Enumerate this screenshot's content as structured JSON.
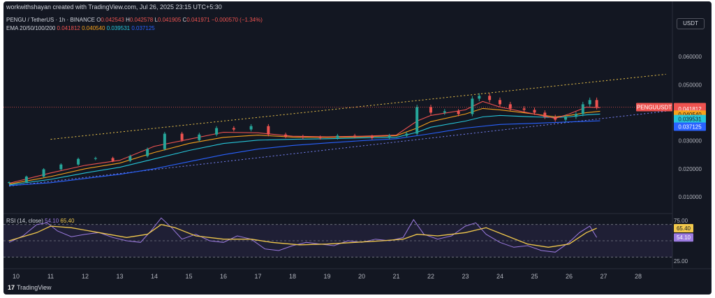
{
  "header": {
    "credit": "workwithshayan created with TradingView.com, Jul 26, 2025 23:15 UTC+5:30",
    "symbol_title": "PENGU / TetherUS · 1h · BINANCE",
    "ohlc": {
      "o_label": "O",
      "o": "0.042543",
      "h_label": "H",
      "h": "0.042578",
      "l_label": "L",
      "l": "0.041905",
      "c_label": "C",
      "c": "0.041971",
      "change": "−0.000570 (−1.34%)"
    },
    "ema_label": "EMA 20/50/100/200",
    "ema_values": [
      "0.041812",
      "0.040540",
      "0.039531",
      "0.037125"
    ],
    "currency": "USDT"
  },
  "rsi": {
    "label": "RSI (14, close)",
    "value": "54.10",
    "ma_value": "65.40"
  },
  "footer": {
    "brand": "TradingView",
    "logo": "17"
  },
  "colors": {
    "background": "#131722",
    "up": "#26a69a",
    "down": "#ef5350",
    "ema20": "#ef5350",
    "ema50": "#f7a21b",
    "ema100": "#26c6da",
    "ema200": "#2962ff",
    "channel": "#f2c94c",
    "rsi": "#9c7be0",
    "rsi_ma": "#f2c94c"
  },
  "chart_data": [
    {
      "type": "candlestick",
      "title": "PENGU / TetherUS · 1h · BINANCE",
      "x_tick_labels": [
        "10",
        "11",
        "12",
        "13",
        "14",
        "15",
        "16",
        "17",
        "18",
        "19",
        "20",
        "21",
        "22",
        "23",
        "24",
        "25",
        "26",
        "27",
        "28"
      ],
      "y_tick_labels": [
        "0.060000",
        "0.050000",
        "0.030000",
        "0.020000",
        "0.010000"
      ],
      "ylim": [
        0.005,
        0.066
      ],
      "last_price_label": "PENGUUSDT",
      "last_price": 0.041971,
      "series": [
        {
          "name": "PENGUUSDT",
          "x": [
            9.8,
            10.3,
            10.8,
            11.3,
            11.8,
            12.3,
            12.8,
            13.3,
            13.8,
            14.3,
            14.8,
            15.3,
            15.8,
            16.3,
            16.8,
            17.3,
            17.8,
            18.3,
            18.8,
            19.3,
            19.8,
            20.3,
            20.8,
            21.3,
            21.6,
            22.0,
            22.4,
            22.8,
            23.2,
            23.4,
            23.7,
            24.0,
            24.3,
            24.7,
            25.0,
            25.3,
            25.6,
            25.9,
            26.2,
            26.4,
            26.6,
            26.8
          ],
          "close": [
            0.0152,
            0.0172,
            0.0198,
            0.0215,
            0.0235,
            0.0238,
            0.0228,
            0.0245,
            0.027,
            0.0325,
            0.0302,
            0.0322,
            0.0345,
            0.034,
            0.0352,
            0.0322,
            0.0315,
            0.0312,
            0.031,
            0.0318,
            0.0315,
            0.031,
            0.0318,
            0.0325,
            0.042,
            0.04,
            0.0405,
            0.0395,
            0.045,
            0.046,
            0.0445,
            0.043,
            0.0415,
            0.041,
            0.04,
            0.0385,
            0.0375,
            0.0385,
            0.0395,
            0.043,
            0.0445,
            0.042
          ]
        },
        {
          "name": "EMA 20",
          "x": [
            9.8,
            11,
            12,
            13,
            14,
            15,
            16,
            17,
            18,
            19,
            20,
            21,
            21.6,
            22,
            23,
            23.5,
            24,
            25,
            25.6,
            26,
            26.5,
            26.9
          ],
          "values": [
            0.0148,
            0.0185,
            0.0212,
            0.023,
            0.028,
            0.0305,
            0.033,
            0.0328,
            0.0316,
            0.0314,
            0.0316,
            0.032,
            0.037,
            0.039,
            0.041,
            0.044,
            0.042,
            0.0395,
            0.038,
            0.0395,
            0.042,
            0.0418
          ]
        },
        {
          "name": "EMA 50",
          "x": [
            9.8,
            11,
            12,
            13,
            14,
            15,
            16,
            17,
            18,
            19,
            20,
            21,
            21.6,
            22,
            23,
            23.5,
            24,
            25,
            25.6,
            26,
            26.5,
            26.9
          ],
          "values": [
            0.0145,
            0.0172,
            0.02,
            0.022,
            0.0258,
            0.029,
            0.0312,
            0.032,
            0.0313,
            0.0312,
            0.0314,
            0.0318,
            0.0345,
            0.0368,
            0.0395,
            0.0415,
            0.041,
            0.0395,
            0.0385,
            0.039,
            0.04,
            0.0405
          ]
        },
        {
          "name": "EMA 100",
          "x": [
            9.8,
            11,
            12,
            13,
            14,
            15,
            16,
            17,
            18,
            19,
            20,
            21,
            21.6,
            22,
            23,
            23.5,
            24,
            25,
            25.6,
            26,
            26.5,
            26.9
          ],
          "values": [
            0.0142,
            0.0162,
            0.0185,
            0.0205,
            0.0235,
            0.0265,
            0.029,
            0.0302,
            0.0305,
            0.0307,
            0.031,
            0.0312,
            0.033,
            0.0348,
            0.037,
            0.0385,
            0.039,
            0.0385,
            0.0383,
            0.0385,
            0.0392,
            0.0395
          ]
        },
        {
          "name": "EMA 200",
          "x": [
            9.8,
            11,
            12,
            13,
            14,
            15,
            16,
            17,
            18,
            19,
            20,
            21,
            22,
            23,
            24,
            25,
            26,
            26.9
          ],
          "values": [
            0.014,
            0.015,
            0.0165,
            0.018,
            0.02,
            0.0225,
            0.025,
            0.027,
            0.0283,
            0.0292,
            0.03,
            0.0307,
            0.0325,
            0.0345,
            0.0358,
            0.0362,
            0.0367,
            0.0371
          ]
        },
        {
          "name": "Channel upper",
          "x": [
            11.0,
            28.8
          ],
          "values": [
            0.0305,
            0.0537
          ]
        },
        {
          "name": "Channel lower",
          "x": [
            9.8,
            28.8
          ],
          "values": [
            0.0138,
            0.0405
          ]
        }
      ]
    },
    {
      "type": "line",
      "title": "RSI (14, close)",
      "y_tick_labels": [
        "75.00",
        "25.00"
      ],
      "ylim": [
        20,
        80
      ],
      "bands": [
        70,
        50,
        30
      ],
      "series": [
        {
          "name": "RSI",
          "x": [
            9.8,
            10.2,
            10.6,
            10.9,
            11.2,
            11.6,
            12.0,
            12.4,
            12.8,
            13.2,
            13.6,
            13.9,
            14.2,
            14.5,
            14.8,
            15.2,
            15.6,
            16.0,
            16.4,
            16.8,
            17.2,
            17.6,
            18.0,
            18.4,
            18.8,
            19.2,
            19.6,
            20.0,
            20.4,
            20.8,
            21.2,
            21.5,
            21.8,
            22.2,
            22.6,
            23.0,
            23.3,
            23.6,
            24.0,
            24.4,
            24.8,
            25.2,
            25.6,
            26.0,
            26.3,
            26.6,
            26.8
          ],
          "values": [
            48,
            56,
            70,
            72,
            62,
            55,
            58,
            60,
            54,
            50,
            48,
            62,
            78,
            66,
            52,
            58,
            50,
            48,
            56,
            52,
            40,
            38,
            44,
            48,
            46,
            44,
            50,
            48,
            52,
            50,
            54,
            76,
            58,
            52,
            56,
            68,
            72,
            58,
            48,
            42,
            44,
            38,
            36,
            48,
            60,
            68,
            54.1
          ]
        },
        {
          "name": "RSI-based MA",
          "x": [
            9.8,
            10.6,
            11.0,
            11.6,
            12.4,
            13.2,
            13.8,
            14.2,
            14.6,
            15.2,
            16.0,
            16.8,
            17.4,
            18.2,
            19.0,
            19.8,
            20.6,
            21.2,
            21.6,
            22.2,
            23.0,
            23.6,
            24.2,
            24.8,
            25.4,
            26.0,
            26.5,
            26.8
          ],
          "values": [
            50,
            60,
            68,
            66,
            60,
            54,
            58,
            70,
            66,
            56,
            52,
            52,
            48,
            45,
            46,
            48,
            50,
            52,
            58,
            56,
            60,
            66,
            56,
            46,
            42,
            46,
            60,
            65.4
          ]
        }
      ]
    }
  ]
}
